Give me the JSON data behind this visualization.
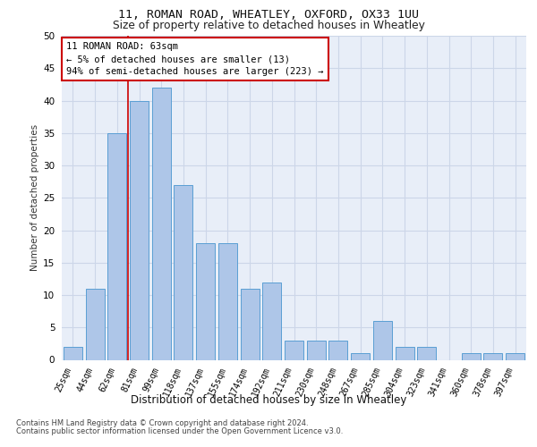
{
  "title1": "11, ROMAN ROAD, WHEATLEY, OXFORD, OX33 1UU",
  "title2": "Size of property relative to detached houses in Wheatley",
  "xlabel": "Distribution of detached houses by size in Wheatley",
  "ylabel": "Number of detached properties",
  "categories": [
    "25sqm",
    "44sqm",
    "62sqm",
    "81sqm",
    "99sqm",
    "118sqm",
    "137sqm",
    "155sqm",
    "174sqm",
    "192sqm",
    "211sqm",
    "230sqm",
    "248sqm",
    "267sqm",
    "285sqm",
    "304sqm",
    "323sqm",
    "341sqm",
    "360sqm",
    "378sqm",
    "397sqm"
  ],
  "values": [
    2,
    11,
    35,
    40,
    42,
    27,
    18,
    18,
    11,
    12,
    3,
    3,
    3,
    1,
    6,
    2,
    2,
    0,
    1,
    1,
    1
  ],
  "bar_color": "#aec6e8",
  "bar_edge_color": "#5a9fd4",
  "bar_width": 0.85,
  "ylim": [
    0,
    50
  ],
  "yticks": [
    0,
    5,
    10,
    15,
    20,
    25,
    30,
    35,
    40,
    45,
    50
  ],
  "property_line_x": 2.5,
  "property_line_color": "#cc0000",
  "annotation_line1": "11 ROMAN ROAD: 63sqm",
  "annotation_line2": "← 5% of detached houses are smaller (13)",
  "annotation_line3": "94% of semi-detached houses are larger (223) →",
  "annotation_box_color": "#ffffff",
  "annotation_box_edge": "#cc0000",
  "grid_color": "#ccd6e8",
  "bg_color": "#e8eef8",
  "footnote1": "Contains HM Land Registry data © Crown copyright and database right 2024.",
  "footnote2": "Contains public sector information licensed under the Open Government Licence v3.0."
}
